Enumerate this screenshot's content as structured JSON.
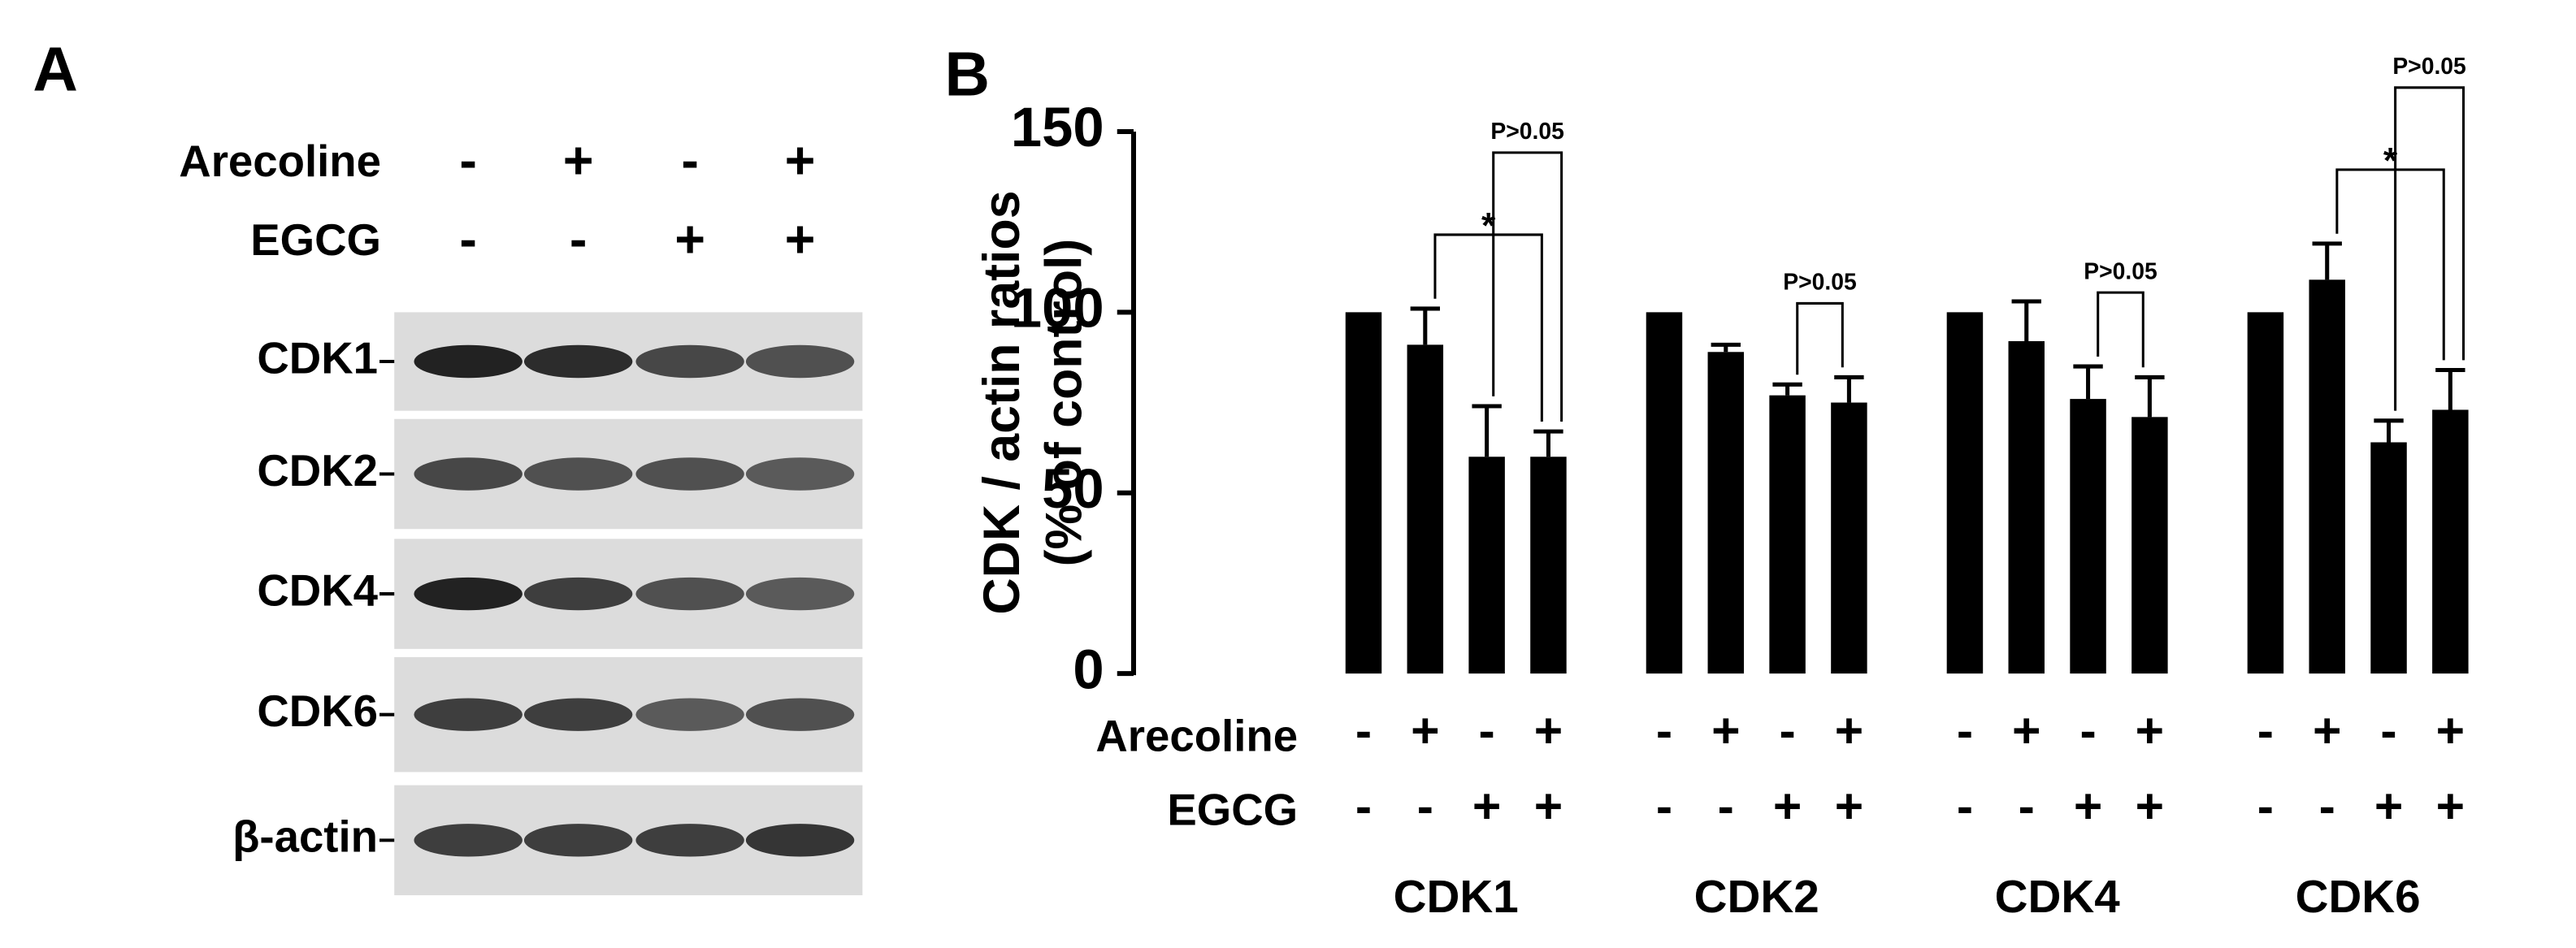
{
  "panel_a": {
    "label": "A",
    "treatments": [
      {
        "name": "Arecoline",
        "signs": [
          "-",
          "+",
          "-",
          "+"
        ]
      },
      {
        "name": "EGCG",
        "signs": [
          "-",
          "-",
          "+",
          "+"
        ]
      }
    ],
    "blots": [
      "CDK1",
      "CDK2",
      "CDK4",
      "CDK6",
      "β-actin"
    ]
  },
  "chart_data": {
    "type": "bar",
    "panel_label": "B",
    "y_label": [
      "CDK / actin ratios",
      "(% of control)"
    ],
    "ylim": [
      0,
      150
    ],
    "yticks": [
      0,
      50,
      100,
      150
    ],
    "color": "#000000",
    "conditions": [
      {
        "name": "Arecoline",
        "signs": [
          "-",
          "+",
          "-",
          "+"
        ]
      },
      {
        "name": "EGCG",
        "signs": [
          "-",
          "-",
          "+",
          "+"
        ]
      }
    ],
    "groups": [
      {
        "name": "CDK1",
        "values": [
          100,
          91,
          60,
          60
        ],
        "errors": [
          null,
          10,
          14,
          7
        ],
        "annotations": [
          {
            "text": "*",
            "from": 1,
            "to": 3
          },
          {
            "text": "P>0.05",
            "from": 2,
            "to": 3
          }
        ]
      },
      {
        "name": "CDK2",
        "values": [
          100,
          89,
          77,
          75
        ],
        "errors": [
          null,
          2,
          3,
          7
        ],
        "annotations": [
          {
            "text": "P>0.05",
            "from": 2,
            "to": 3
          }
        ]
      },
      {
        "name": "CDK4",
        "values": [
          100,
          92,
          76,
          71
        ],
        "errors": [
          null,
          11,
          9,
          11
        ],
        "annotations": [
          {
            "text": "P>0.05",
            "from": 2,
            "to": 3
          }
        ]
      },
      {
        "name": "CDK6",
        "values": [
          100,
          109,
          64,
          73
        ],
        "errors": [
          null,
          10,
          6,
          11
        ],
        "annotations": [
          {
            "text": "*",
            "from": 1,
            "to": 3
          },
          {
            "text": "P>0.05",
            "from": 2,
            "to": 3
          }
        ]
      }
    ]
  }
}
